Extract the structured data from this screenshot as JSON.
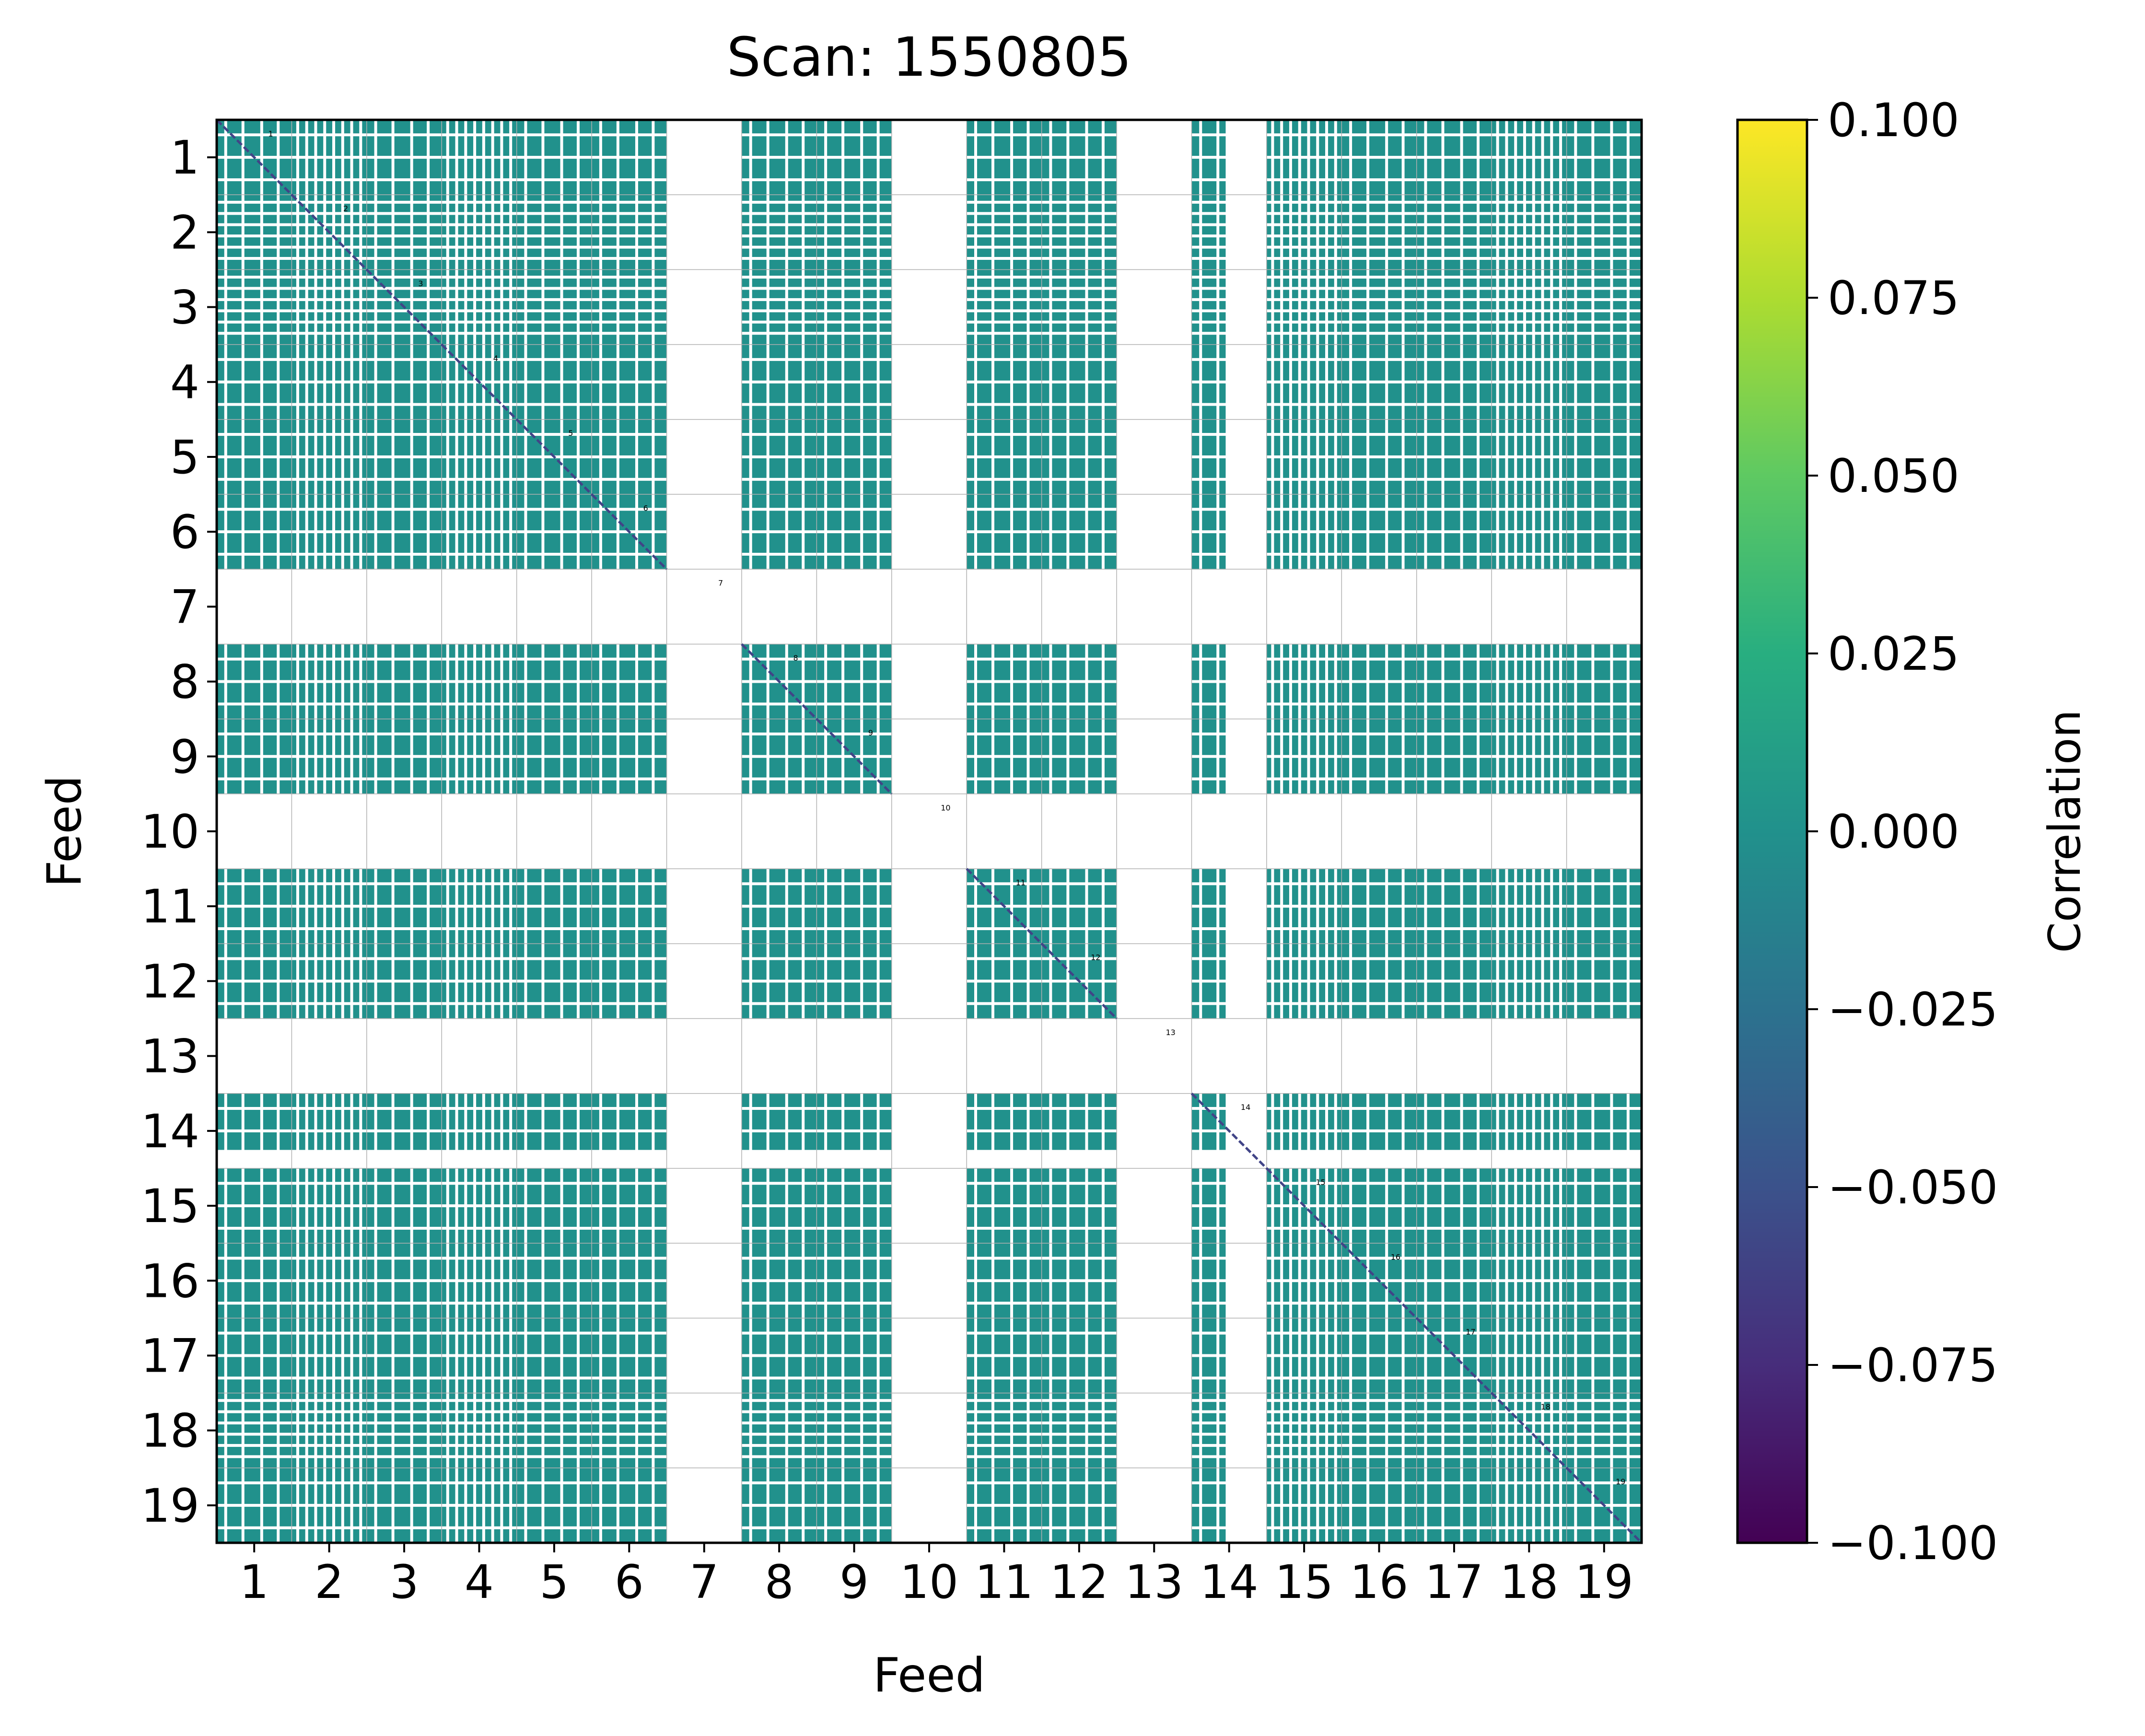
{
  "chart_data": {
    "type": "heatmap",
    "title": "Scan: 1550805",
    "xlabel": "Feed",
    "ylabel": "Feed",
    "feeds": [
      "1",
      "2",
      "3",
      "4",
      "5",
      "6",
      "7",
      "8",
      "9",
      "10",
      "11",
      "12",
      "13",
      "14",
      "15",
      "16",
      "17",
      "18",
      "19"
    ],
    "x_tick_labels": [
      "1",
      "2",
      "3",
      "4",
      "5",
      "6",
      "7",
      "8",
      "9",
      "10",
      "11",
      "12",
      "13",
      "14",
      "15",
      "16",
      "17",
      "18",
      "19"
    ],
    "y_tick_labels": [
      "1",
      "2",
      "3",
      "4",
      "5",
      "6",
      "7",
      "8",
      "9",
      "10",
      "11",
      "12",
      "13",
      "14",
      "15",
      "16",
      "17",
      "18",
      "19"
    ],
    "masked_feeds": [
      "7",
      "10",
      "13"
    ],
    "masked_partial_feeds": [
      "14"
    ],
    "cell_value": 0.0,
    "diagonal_value": -0.05,
    "colorbar": {
      "label": "Correlation",
      "range": [
        -0.1,
        0.1
      ],
      "tick_labels": [
        "0.100",
        "0.075",
        "0.050",
        "0.025",
        "0.000",
        "−0.025",
        "−0.050",
        "−0.075",
        "−0.100"
      ],
      "colormap": "viridis"
    },
    "colors": {
      "cell": "#21918c",
      "diagonal": "#414487",
      "grid": "#b0b0b0"
    }
  }
}
